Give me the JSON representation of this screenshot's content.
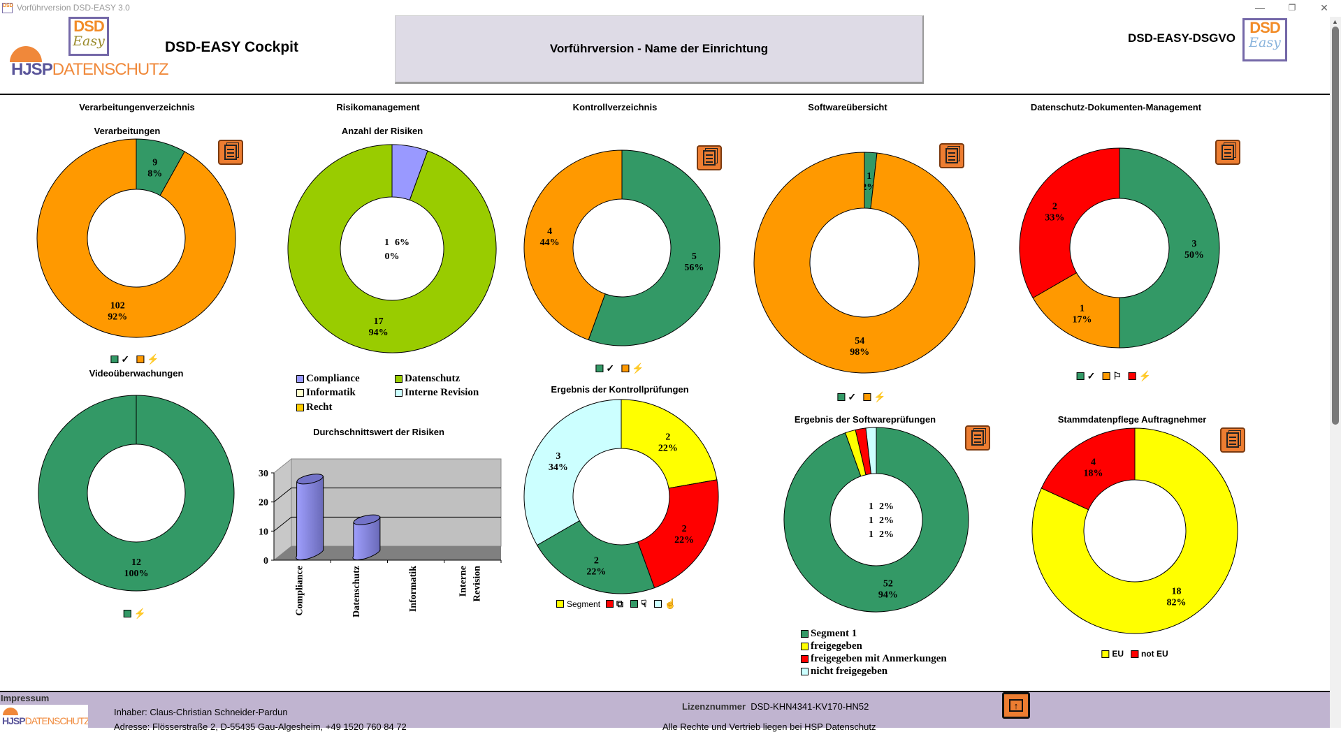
{
  "window": {
    "title": "Vorführversion DSD-EASY 3.0",
    "minimize": "—",
    "maximize": "❐",
    "close": "✕"
  },
  "header": {
    "app_title": "DSD-EASY Cockpit",
    "institution": "Vorführversion - Name der Einrichtung",
    "product": "DSD-EASY-DSGVO",
    "logo_hsp_a": "HJSP",
    "logo_hsp_b": "DATENSCHUTZ",
    "logo_dsd": "DSD",
    "logo_easy": "Easy"
  },
  "sections": {
    "verarbeitung": {
      "title": "Verarbeitungenverzeichnis",
      "subtitle": "Verarbeitungen",
      "video": "Videoüberwachungen"
    },
    "risiko": {
      "title": "Risikomanagement",
      "subtitle": "Anzahl der Risiken",
      "bar_title": "Durchschnittswert der Risiken"
    },
    "kontroll": {
      "title": "Kontrollverzeichnis",
      "sub2": "Ergebnis der Kontrollprüfungen"
    },
    "software": {
      "title": "Softwareübersicht",
      "sub2": "Ergebnis der Softwareprüfungen"
    },
    "dokumente": {
      "title": "Datenschutz-Dokumenten-Management",
      "sub2": "Stammdatenpflege Auftragnehmer"
    }
  },
  "colors": {
    "green": "#339966",
    "orange": "#ff9900",
    "purple": "#9999ff",
    "lime": "#99cc00",
    "yellow": "#ffff00",
    "red": "#ff0000",
    "cyan": "#ccffff",
    "doc_button": "#ed7d31",
    "footer": "#c0b4d0"
  },
  "legends": {
    "risiko": [
      "Compliance",
      "Datenschutz",
      "Informatik",
      "Interne Revision",
      "Recht"
    ],
    "kontrollpruef_segment": "Segment",
    "softwarepruef": [
      "Segment 1",
      "freigegeben",
      "freigegeben mit Anmerkungen",
      "nicht freigegeben"
    ],
    "stammdaten": [
      "EU",
      "not EU"
    ],
    "icons": {
      "check": "✓",
      "lightning": "⚡",
      "flag": "⚐",
      "sitemap": "⧉",
      "thumbs_down": "☟",
      "thumbs_up": "☝"
    }
  },
  "chart_data": [
    {
      "type": "pie",
      "title": "Verarbeitungen",
      "segments": [
        {
          "value": 9,
          "pct": "8%",
          "color": "#339966"
        },
        {
          "value": 102,
          "pct": "92%",
          "color": "#ff9900"
        }
      ]
    },
    {
      "type": "pie",
      "title": "Videoüberwachungen",
      "segments": [
        {
          "value": 12,
          "pct": "100%",
          "color": "#339966"
        }
      ]
    },
    {
      "type": "pie",
      "title": "Anzahl der Risiken",
      "segments": [
        {
          "name": "Compliance",
          "value": 1,
          "pct": "6%",
          "color": "#9999ff"
        },
        {
          "name": "Informatik",
          "value": 0,
          "pct": "0%",
          "color": "#ffffcc"
        },
        {
          "name": "Datenschutz",
          "value": 17,
          "pct": "94%",
          "color": "#99cc00"
        }
      ]
    },
    {
      "type": "pie",
      "title": "Kontrollverzeichnis",
      "segments": [
        {
          "value": 5,
          "pct": "56%",
          "color": "#339966"
        },
        {
          "value": 4,
          "pct": "44%",
          "color": "#ff9900"
        }
      ]
    },
    {
      "type": "pie",
      "title": "Ergebnis der Kontrollprüfungen",
      "segments": [
        {
          "name": "Segment",
          "value": 2,
          "pct": "22%",
          "color": "#ffff00"
        },
        {
          "value": 2,
          "pct": "22%",
          "color": "#ff0000"
        },
        {
          "value": 2,
          "pct": "22%",
          "color": "#339966"
        },
        {
          "value": 3,
          "pct": "34%",
          "color": "#ccffff"
        }
      ]
    },
    {
      "type": "pie",
      "title": "Softwareübersicht",
      "segments": [
        {
          "value": 1,
          "pct": "2%",
          "color": "#339966"
        },
        {
          "value": 54,
          "pct": "98%",
          "color": "#ff9900"
        }
      ]
    },
    {
      "type": "pie",
      "title": "Ergebnis der Softwareprüfungen",
      "segments": [
        {
          "name": "Segment 1",
          "value": 52,
          "pct": "94%",
          "color": "#339966"
        },
        {
          "name": "freigegeben",
          "value": 1,
          "pct": "2%",
          "color": "#ffff00"
        },
        {
          "name": "freigegeben mit Anmerkungen",
          "value": 1,
          "pct": "2%",
          "color": "#ff0000"
        },
        {
          "name": "nicht freigegeben",
          "value": 1,
          "pct": "2%",
          "color": "#ccffff"
        }
      ]
    },
    {
      "type": "pie",
      "title": "Datenschutz-Dokumenten-Management",
      "segments": [
        {
          "value": 3,
          "pct": "50%",
          "color": "#339966"
        },
        {
          "value": 1,
          "pct": "17%",
          "color": "#ff9900"
        },
        {
          "value": 2,
          "pct": "33%",
          "color": "#ff0000"
        }
      ]
    },
    {
      "type": "pie",
      "title": "Stammdatenpflege Auftragnehmer",
      "segments": [
        {
          "name": "EU",
          "value": 18,
          "pct": "82%",
          "color": "#ffff00"
        },
        {
          "name": "not EU",
          "value": 4,
          "pct": "18%",
          "color": "#ff0000"
        }
      ]
    },
    {
      "type": "bar",
      "title": "Durchschnittswert der Risiken",
      "categories": [
        "Compliance",
        "Datenschutz",
        "Informatik",
        "Interne Revision"
      ],
      "values": [
        25,
        11,
        0,
        0
      ],
      "ylim": [
        0,
        30
      ],
      "yticks": [
        "0",
        "10",
        "20",
        "30"
      ],
      "grid": true,
      "color": "#9999ff"
    }
  ],
  "footer": {
    "impressum": "Impressum",
    "inhaber_label": "Inhaber:",
    "inhaber": "Claus-Christian Schneider-Pardun",
    "adresse_label": "Adresse:",
    "adresse": "Flösserstraße 2, D-55435 Gau-Algesheim, +49 1520 760 84 72",
    "lizenz_label": "Lizenznummer",
    "lizenz": "DSD-KHN4341-KV170-HN52",
    "rechte": "Alle Rechte und Vertrieb liegen bei HSP Datenschutz",
    "logo_a": "HJSP",
    "logo_b": "DATENSCHUTZ"
  }
}
